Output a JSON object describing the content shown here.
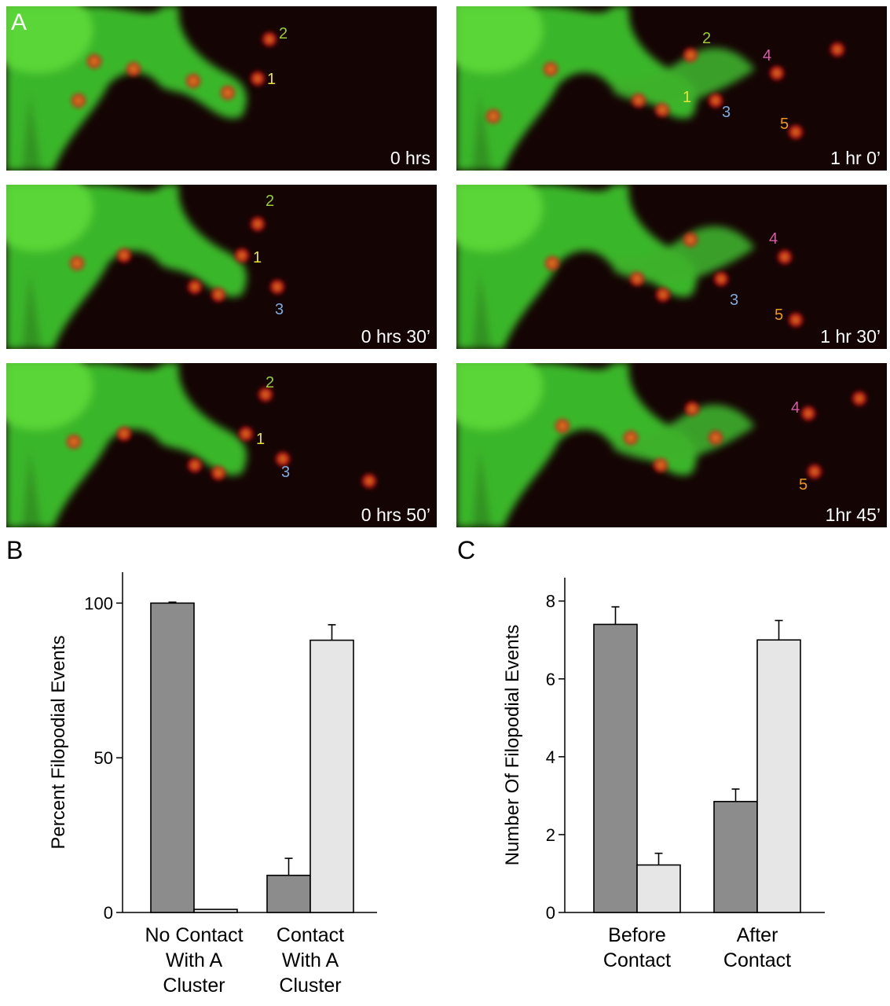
{
  "panel_a": {
    "letter": "A",
    "frames": [
      {
        "time": "0 hrs",
        "markers": [
          {
            "text": "2",
            "color": "#9acd32"
          },
          {
            "text": "1",
            "color": "#e8e23a"
          }
        ]
      },
      {
        "time": "1 hr 0’",
        "markers": [
          {
            "text": "2",
            "color": "#9acd32"
          },
          {
            "text": "4",
            "color": "#d65aa8"
          },
          {
            "text": "1",
            "color": "#e8e23a"
          },
          {
            "text": "3",
            "color": "#7fa9df"
          },
          {
            "text": "5",
            "color": "#f0961e"
          }
        ]
      },
      {
        "time": "0 hrs 30’",
        "markers": [
          {
            "text": "2",
            "color": "#9acd32"
          },
          {
            "text": "1",
            "color": "#e8e23a"
          },
          {
            "text": "3",
            "color": "#7fa9df"
          }
        ]
      },
      {
        "time": "1 hr 30’",
        "markers": [
          {
            "text": "4",
            "color": "#d65aa8"
          },
          {
            "text": "3",
            "color": "#7fa9df"
          },
          {
            "text": "5",
            "color": "#f0961e"
          }
        ]
      },
      {
        "time": "0 hrs 50’",
        "markers": [
          {
            "text": "2",
            "color": "#9acd32"
          },
          {
            "text": "1",
            "color": "#e8e23a"
          },
          {
            "text": "3",
            "color": "#7fa9df"
          }
        ]
      },
      {
        "time": "1hr 45’",
        "markers": [
          {
            "text": "4",
            "color": "#d65aa8"
          },
          {
            "text": "5",
            "color": "#f0961e"
          }
        ]
      }
    ]
  },
  "chart_data": [
    {
      "id": "B",
      "letter": "B",
      "type": "bar",
      "ylabel": "Percent Filopodial Events",
      "ylim": [
        0,
        110
      ],
      "yticks": [
        0,
        50,
        100
      ],
      "categories": [
        [
          "No Contact",
          "With A",
          "Cluster"
        ],
        [
          "Contact",
          "With A",
          "Cluster"
        ]
      ],
      "series": [
        {
          "color": "#8c8c8c",
          "values": [
            100,
            12
          ],
          "errors": [
            0.3,
            5.5
          ]
        },
        {
          "color": "#e6e6e6",
          "values": [
            1,
            88
          ],
          "errors": [
            0,
            5
          ]
        }
      ]
    },
    {
      "id": "C",
      "letter": "C",
      "type": "bar",
      "ylabel": "Number Of Filopodial Events",
      "ylim": [
        0,
        8.6
      ],
      "yticks": [
        0,
        2,
        4,
        6,
        8
      ],
      "categories": [
        [
          "Before",
          "Contact"
        ],
        [
          "After",
          "Contact"
        ]
      ],
      "series": [
        {
          "color": "#8c8c8c",
          "values": [
            7.4,
            2.85
          ],
          "errors": [
            0.45,
            0.32
          ]
        },
        {
          "color": "#e6e6e6",
          "values": [
            1.22,
            7.0
          ],
          "errors": [
            0.3,
            0.5
          ]
        }
      ]
    }
  ]
}
